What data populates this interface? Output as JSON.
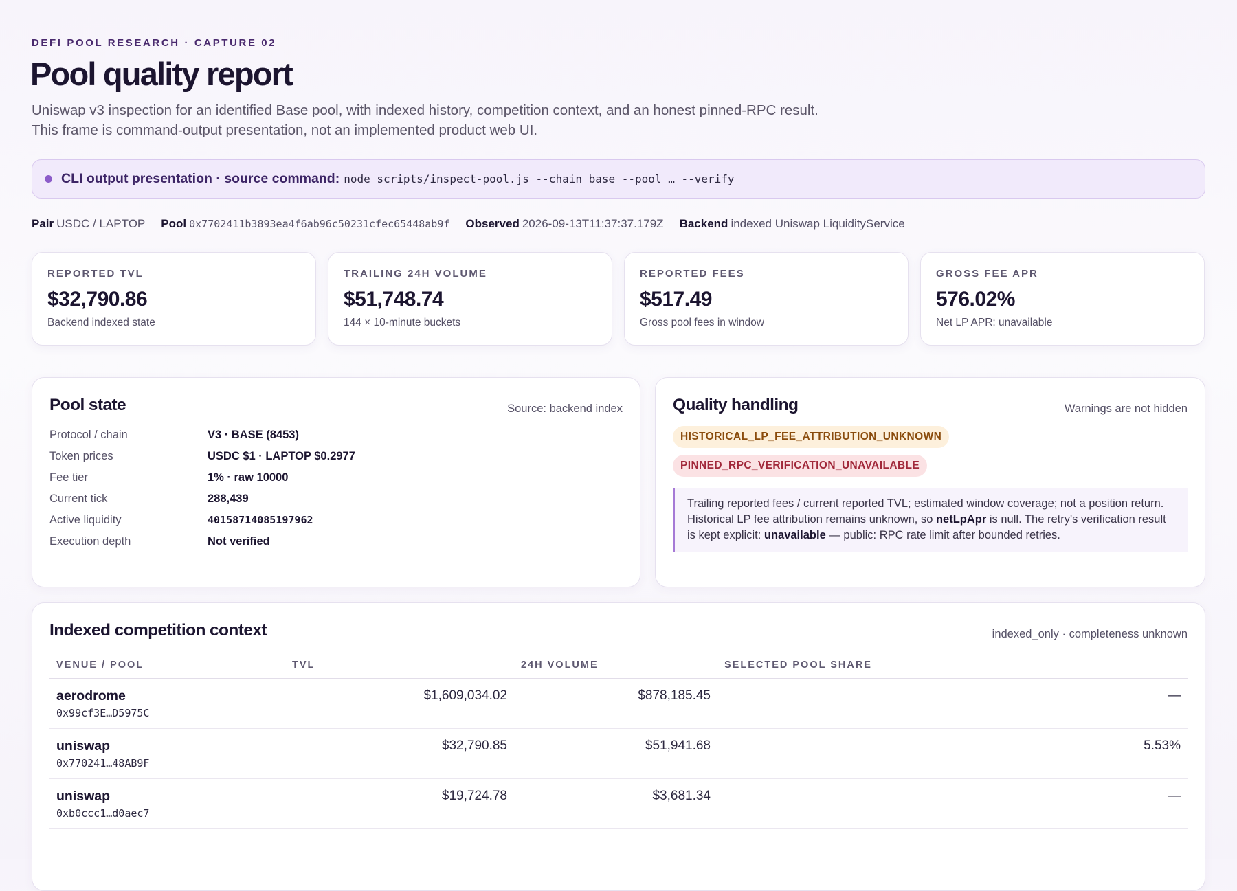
{
  "header": {
    "eyebrow": "DEFI POOL RESEARCH · CAPTURE 02",
    "title": "Pool quality report",
    "subtitle": [
      "Uniswap v3 inspection for an identified Base pool, with indexed history, competition context, and an honest pinned-RPC result.",
      "This frame is command-output presentation, not an implemented product web UI."
    ]
  },
  "banner": {
    "label": "CLI output presentation · source command:",
    "command": "node scripts/inspect-pool.js --chain base --pool … --verify"
  },
  "meta": [
    {
      "label": "Pair",
      "value": "USDC / LAPTOP"
    },
    {
      "label": "Pool",
      "value": "0x7702411b3893ea4f6ab96c50231cfec65448ab9f"
    },
    {
      "label": "Observed",
      "value": "2026-09-13T11:37:37.179Z"
    },
    {
      "label": "Backend",
      "value": "indexed Uniswap LiquidityService"
    }
  ],
  "cards": [
    {
      "label": "REPORTED TVL",
      "value": "$32,790.86",
      "note": "Backend indexed state"
    },
    {
      "label": "TRAILING 24H VOLUME",
      "value": "$51,748.74",
      "note": "144 × 10-minute buckets"
    },
    {
      "label": "REPORTED FEES",
      "value": "$517.49",
      "note": "Gross pool fees in window"
    },
    {
      "label": "GROSS FEE APR",
      "value": "576.02%",
      "note": "Net LP APR: unavailable"
    }
  ],
  "pool_state": {
    "title": "Pool state",
    "source": "Source: backend index",
    "rows": [
      {
        "label": "Protocol / chain",
        "value": "V3 · BASE (8453)"
      },
      {
        "label": "Token prices",
        "value": "USDC $1 · LAPTOP $0.2977"
      },
      {
        "label": "Fee tier",
        "value": "1% · raw 10000"
      },
      {
        "label": "Current tick",
        "value": "288,439"
      },
      {
        "label": "Active liquidity",
        "value": "40158714085197962"
      },
      {
        "label": "Execution depth",
        "value": "Not verified"
      }
    ]
  },
  "quality": {
    "title": "Quality handling",
    "note": "Warnings are not hidden",
    "flags": [
      "HISTORICAL_LP_FEE_ATTRIBUTION_UNKNOWN",
      "PINNED_RPC_VERIFICATION_UNAVAILABLE"
    ],
    "explanation": {
      "part1": "Trailing reported fees / current reported TVL; estimated window coverage; not a position return. Historical LP fee attribution remains unknown, so ",
      "bold1": "netLpApr",
      "part2": " is null. The retry's verification result is kept explicit: ",
      "bold2": "unavailable",
      "part3": " — public: RPC rate limit after bounded retries."
    }
  },
  "competition": {
    "title": "Indexed competition context",
    "note": "indexed_only · completeness unknown",
    "columns": [
      "VENUE / POOL",
      "TVL",
      "24H VOLUME",
      "SELECTED POOL SHARE"
    ],
    "rows": [
      {
        "venue": "aerodrome",
        "pool": "0x99cf3E…D5975C",
        "tvl": "$1,609,034.02",
        "volume": "$878,185.45",
        "share": "—"
      },
      {
        "venue": "uniswap",
        "pool": "0x770241…48AB9F",
        "tvl": "$32,790.85",
        "volume": "$51,941.68",
        "share": "5.53%"
      },
      {
        "venue": "uniswap",
        "pool": "0xb0ccc1…d0aec7",
        "tvl": "$19,724.78",
        "volume": "$3,681.34",
        "share": "—"
      }
    ]
  }
}
